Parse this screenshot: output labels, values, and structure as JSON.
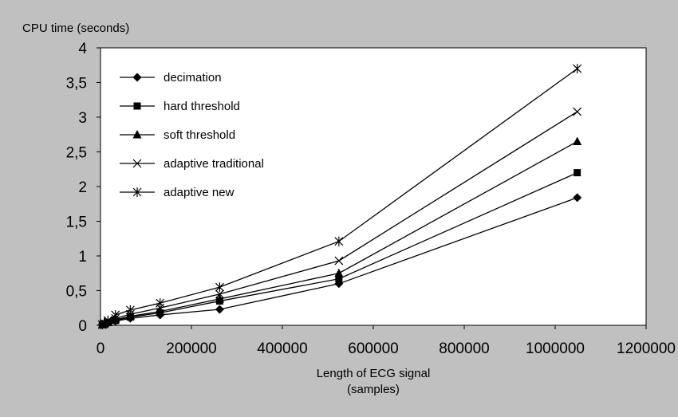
{
  "chart_data": {
    "type": "line",
    "title": "",
    "ylabel": "CPU time (seconds)",
    "xlabel": [
      "Length of ECG signal",
      "(samples)"
    ],
    "xlim": [
      0,
      1200000
    ],
    "ylim": [
      0,
      4
    ],
    "x_ticks": [
      0,
      200000,
      400000,
      600000,
      800000,
      1000000,
      1200000
    ],
    "x_tick_labels": [
      "0",
      "200000",
      "400000",
      "600000",
      "800000",
      "1000000",
      "1200000"
    ],
    "y_ticks": [
      0,
      0.5,
      1,
      1.5,
      2,
      2.5,
      3,
      3.5,
      4
    ],
    "y_tick_labels": [
      "0",
      "0,5",
      "1",
      "1,5",
      "2",
      "2,5",
      "3",
      "3,5",
      "4"
    ],
    "grid": false,
    "legend_position": "top-left",
    "x": [
      4096,
      8192,
      16384,
      32768,
      65536,
      131072,
      262144,
      524288,
      1048576
    ],
    "series": [
      {
        "name": "decimation",
        "marker": "diamond",
        "values": [
          0.01,
          0.02,
          0.03,
          0.06,
          0.1,
          0.15,
          0.23,
          0.6,
          1.84
        ]
      },
      {
        "name": "hard threshold",
        "marker": "square",
        "values": [
          0.01,
          0.02,
          0.04,
          0.07,
          0.12,
          0.18,
          0.35,
          0.67,
          2.2
        ]
      },
      {
        "name": "soft threshold",
        "marker": "triangle",
        "values": [
          0.01,
          0.02,
          0.04,
          0.08,
          0.13,
          0.2,
          0.38,
          0.75,
          2.65
        ]
      },
      {
        "name": "adaptive traditional",
        "marker": "x",
        "values": [
          0.01,
          0.02,
          0.05,
          0.1,
          0.16,
          0.25,
          0.45,
          0.93,
          3.08
        ]
      },
      {
        "name": "adaptive new",
        "marker": "asterisk",
        "values": [
          0.01,
          0.03,
          0.07,
          0.15,
          0.22,
          0.32,
          0.55,
          1.21,
          3.7
        ]
      }
    ]
  }
}
